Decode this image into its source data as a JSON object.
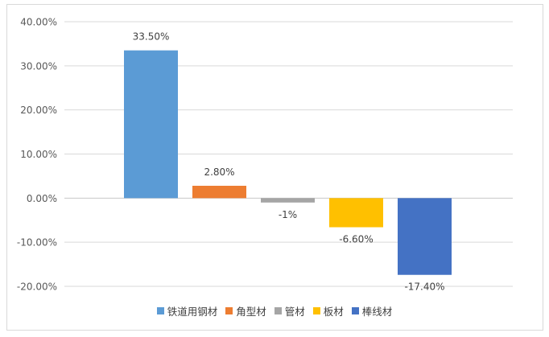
{
  "chart_data": {
    "type": "bar",
    "categories": [
      "铁道用钢材",
      "角型材",
      "管材",
      "板材",
      "棒线材"
    ],
    "values": [
      33.5,
      2.8,
      -1,
      -6.6,
      -17.4
    ],
    "data_labels": [
      "33.50%",
      "2.80%",
      "-1%",
      "-6.60%",
      "-17.40%"
    ],
    "colors": [
      "#5b9bd5",
      "#ed7d31",
      "#a5a5a5",
      "#ffc000",
      "#4472c4"
    ],
    "ylim": [
      -20,
      40
    ],
    "yticks": [
      40,
      30,
      20,
      10,
      0,
      -10,
      -20
    ],
    "ytick_labels": [
      "40.00%",
      "30.00%",
      "20.00%",
      "10.00%",
      "0.00%",
      "-10.00%",
      "-20.00%"
    ],
    "grid": true,
    "legend_position": "bottom",
    "title": "",
    "xlabel": "",
    "ylabel": ""
  }
}
